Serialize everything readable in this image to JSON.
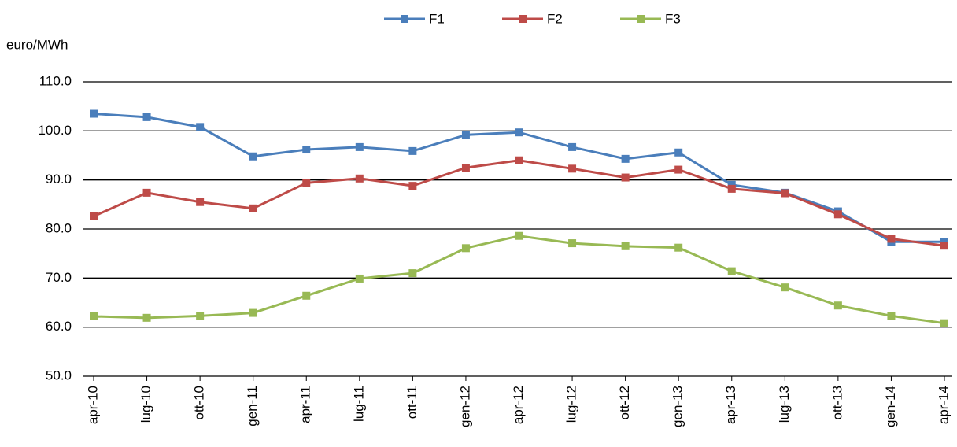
{
  "chart_data": {
    "type": "line",
    "y_label": "euro/MWh",
    "categories": [
      "apr-10",
      "lug-10",
      "ott-10",
      "gen-11",
      "apr-11",
      "lug-11",
      "ott-11",
      "gen-12",
      "apr-12",
      "lug-12",
      "ott-12",
      "gen-13",
      "apr-13",
      "lug-13",
      "ott-13",
      "gen-14",
      "apr-14"
    ],
    "series": [
      {
        "name": "F1",
        "color": "#4a7ebb",
        "values": [
          103.5,
          102.8,
          100.8,
          94.8,
          96.2,
          96.7,
          95.9,
          99.2,
          99.7,
          96.7,
          94.3,
          95.6,
          89.0,
          87.4,
          83.6,
          77.4,
          77.4
        ]
      },
      {
        "name": "F2",
        "color": "#be4b48",
        "values": [
          82.6,
          87.4,
          85.5,
          84.2,
          89.4,
          90.3,
          88.8,
          92.5,
          94.0,
          92.3,
          90.5,
          92.1,
          88.2,
          87.3,
          83.0,
          78.0,
          76.6
        ]
      },
      {
        "name": "F3",
        "color": "#98b954",
        "values": [
          62.2,
          61.9,
          62.3,
          62.9,
          66.4,
          69.9,
          71.0,
          76.1,
          78.6,
          77.1,
          76.5,
          76.2,
          71.4,
          68.1,
          64.4,
          62.3,
          60.8
        ]
      }
    ],
    "ylim": [
      50,
      110
    ],
    "yticks": [
      {
        "value": 50,
        "label": "50.0"
      },
      {
        "value": 60,
        "label": "60.0"
      },
      {
        "value": 70,
        "label": "70.0"
      },
      {
        "value": 80,
        "label": "80.0"
      },
      {
        "value": 90,
        "label": "90.0"
      },
      {
        "value": 100,
        "label": "100.0"
      },
      {
        "value": 110,
        "label": "110.0"
      }
    ],
    "grid": true,
    "legend": "top"
  }
}
